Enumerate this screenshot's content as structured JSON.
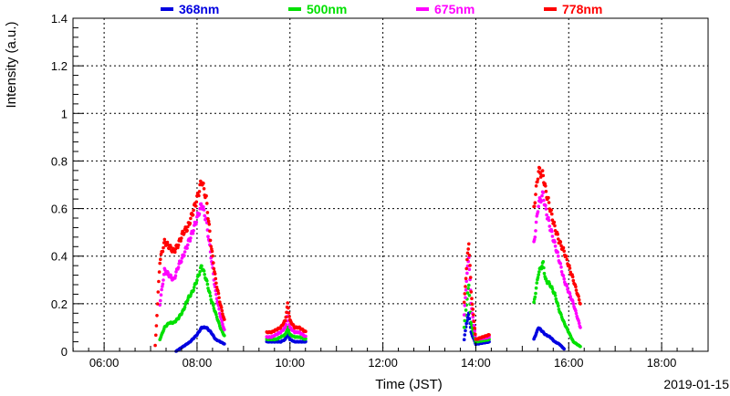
{
  "chart_data": {
    "type": "scatter",
    "xlabel": "Time (JST)",
    "ylabel": "Intensity (a.u.)",
    "date_label": "2019-01-15",
    "xlim": [
      5.33,
      19.0
    ],
    "ylim": [
      0,
      1.4
    ],
    "x_ticks": [
      6,
      8,
      10,
      12,
      14,
      16,
      18
    ],
    "x_tick_labels": [
      "06:00",
      "08:00",
      "10:00",
      "12:00",
      "14:00",
      "16:00",
      "18:00"
    ],
    "y_ticks": [
      0,
      0.2,
      0.4,
      0.6,
      0.8,
      1,
      1.2,
      1.4
    ],
    "y_tick_labels": [
      "0",
      "0.2",
      "0.4",
      "0.6",
      "0.8",
      "1",
      "1.2",
      "1.4"
    ],
    "grid": true,
    "legend_position": "top",
    "series": [
      {
        "name": "368nm",
        "color": "#0000e0",
        "points": [
          [
            7.55,
            0.0
          ],
          [
            7.7,
            0.02
          ],
          [
            7.85,
            0.04
          ],
          [
            8.0,
            0.07
          ],
          [
            8.1,
            0.1
          ],
          [
            8.2,
            0.1
          ],
          [
            8.3,
            0.08
          ],
          [
            8.4,
            0.05
          ],
          [
            8.5,
            0.04
          ],
          [
            8.6,
            0.03
          ],
          [
            9.5,
            0.04
          ],
          [
            9.6,
            0.04
          ],
          [
            9.7,
            0.04
          ],
          [
            9.8,
            0.04
          ],
          [
            9.9,
            0.05
          ],
          [
            9.95,
            0.08
          ],
          [
            10.0,
            0.05
          ],
          [
            10.1,
            0.04
          ],
          [
            10.2,
            0.04
          ],
          [
            10.35,
            0.04
          ],
          [
            13.75,
            0.05
          ],
          [
            13.8,
            0.12
          ],
          [
            13.85,
            0.16
          ],
          [
            13.9,
            0.08
          ],
          [
            14.0,
            0.03
          ],
          [
            14.3,
            0.04
          ],
          [
            15.25,
            0.05
          ],
          [
            15.35,
            0.1
          ],
          [
            15.5,
            0.07
          ],
          [
            15.6,
            0.06
          ],
          [
            15.7,
            0.04
          ],
          [
            15.8,
            0.03
          ],
          [
            15.9,
            0.01
          ]
        ]
      },
      {
        "name": "500nm",
        "color": "#00e000",
        "points": [
          [
            7.2,
            0.05
          ],
          [
            7.3,
            0.1
          ],
          [
            7.4,
            0.12
          ],
          [
            7.5,
            0.12
          ],
          [
            7.6,
            0.14
          ],
          [
            7.7,
            0.17
          ],
          [
            7.8,
            0.22
          ],
          [
            7.9,
            0.25
          ],
          [
            8.0,
            0.3
          ],
          [
            8.1,
            0.36
          ],
          [
            8.2,
            0.3
          ],
          [
            8.3,
            0.22
          ],
          [
            8.4,
            0.16
          ],
          [
            8.5,
            0.1
          ],
          [
            8.6,
            0.06
          ],
          [
            9.5,
            0.05
          ],
          [
            9.6,
            0.05
          ],
          [
            9.7,
            0.05
          ],
          [
            9.8,
            0.06
          ],
          [
            9.9,
            0.07
          ],
          [
            9.95,
            0.1
          ],
          [
            10.0,
            0.07
          ],
          [
            10.1,
            0.06
          ],
          [
            10.2,
            0.06
          ],
          [
            10.35,
            0.05
          ],
          [
            13.75,
            0.1
          ],
          [
            13.8,
            0.2
          ],
          [
            13.85,
            0.28
          ],
          [
            13.9,
            0.12
          ],
          [
            14.0,
            0.04
          ],
          [
            14.3,
            0.05
          ],
          [
            15.25,
            0.2
          ],
          [
            15.35,
            0.33
          ],
          [
            15.45,
            0.37
          ],
          [
            15.5,
            0.3
          ],
          [
            15.6,
            0.28
          ],
          [
            15.7,
            0.24
          ],
          [
            15.8,
            0.17
          ],
          [
            15.9,
            0.12
          ],
          [
            16.0,
            0.08
          ],
          [
            16.1,
            0.04
          ],
          [
            16.25,
            0.02
          ]
        ]
      },
      {
        "name": "675nm",
        "color": "#ff00ff",
        "points": [
          [
            7.2,
            0.2
          ],
          [
            7.3,
            0.34
          ],
          [
            7.4,
            0.32
          ],
          [
            7.5,
            0.3
          ],
          [
            7.6,
            0.36
          ],
          [
            7.7,
            0.4
          ],
          [
            7.8,
            0.45
          ],
          [
            7.9,
            0.5
          ],
          [
            8.0,
            0.56
          ],
          [
            8.1,
            0.62
          ],
          [
            8.2,
            0.55
          ],
          [
            8.3,
            0.4
          ],
          [
            8.4,
            0.25
          ],
          [
            8.5,
            0.15
          ],
          [
            8.6,
            0.08
          ],
          [
            9.5,
            0.06
          ],
          [
            9.6,
            0.06
          ],
          [
            9.7,
            0.07
          ],
          [
            9.8,
            0.08
          ],
          [
            9.9,
            0.1
          ],
          [
            9.95,
            0.16
          ],
          [
            10.0,
            0.1
          ],
          [
            10.1,
            0.08
          ],
          [
            10.2,
            0.08
          ],
          [
            10.35,
            0.06
          ],
          [
            13.75,
            0.15
          ],
          [
            13.8,
            0.3
          ],
          [
            13.85,
            0.4
          ],
          [
            13.9,
            0.2
          ],
          [
            14.0,
            0.05
          ],
          [
            14.3,
            0.06
          ],
          [
            15.25,
            0.45
          ],
          [
            15.35,
            0.62
          ],
          [
            15.45,
            0.66
          ],
          [
            15.5,
            0.6
          ],
          [
            15.6,
            0.52
          ],
          [
            15.7,
            0.45
          ],
          [
            15.8,
            0.38
          ],
          [
            15.9,
            0.3
          ],
          [
            16.0,
            0.25
          ],
          [
            16.1,
            0.2
          ],
          [
            16.25,
            0.1
          ]
        ]
      },
      {
        "name": "778nm",
        "color": "#ff0000",
        "points": [
          [
            7.1,
            0.02
          ],
          [
            7.2,
            0.38
          ],
          [
            7.3,
            0.46
          ],
          [
            7.4,
            0.44
          ],
          [
            7.5,
            0.42
          ],
          [
            7.6,
            0.45
          ],
          [
            7.7,
            0.5
          ],
          [
            7.8,
            0.52
          ],
          [
            7.9,
            0.58
          ],
          [
            8.0,
            0.64
          ],
          [
            8.1,
            0.72
          ],
          [
            8.2,
            0.64
          ],
          [
            8.3,
            0.45
          ],
          [
            8.4,
            0.3
          ],
          [
            8.5,
            0.2
          ],
          [
            8.6,
            0.12
          ],
          [
            9.5,
            0.08
          ],
          [
            9.6,
            0.08
          ],
          [
            9.7,
            0.09
          ],
          [
            9.8,
            0.1
          ],
          [
            9.9,
            0.13
          ],
          [
            9.95,
            0.2
          ],
          [
            10.0,
            0.13
          ],
          [
            10.1,
            0.1
          ],
          [
            10.2,
            0.1
          ],
          [
            10.35,
            0.08
          ],
          [
            13.75,
            0.2
          ],
          [
            13.8,
            0.35
          ],
          [
            13.85,
            0.46
          ],
          [
            13.9,
            0.25
          ],
          [
            14.0,
            0.05
          ],
          [
            14.3,
            0.07
          ],
          [
            15.25,
            0.6
          ],
          [
            15.35,
            0.76
          ],
          [
            15.45,
            0.74
          ],
          [
            15.5,
            0.68
          ],
          [
            15.6,
            0.6
          ],
          [
            15.7,
            0.52
          ],
          [
            15.8,
            0.46
          ],
          [
            15.9,
            0.42
          ],
          [
            16.0,
            0.36
          ],
          [
            16.1,
            0.3
          ],
          [
            16.25,
            0.2
          ]
        ]
      }
    ]
  }
}
